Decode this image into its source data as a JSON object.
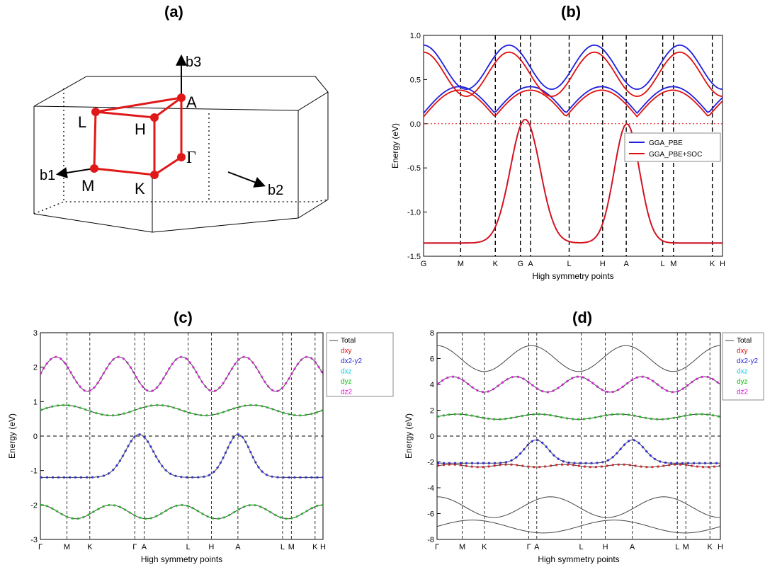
{
  "panel_labels": [
    "(a)",
    "(b)",
    "(c)",
    "(d)"
  ],
  "brillouin_zone": {
    "axes": [
      "b1",
      "b2",
      "b3"
    ],
    "points": [
      "A",
      "L",
      "H",
      "Γ",
      "M",
      "K"
    ]
  },
  "chart_data": [
    {
      "panel": "(b)",
      "type": "line",
      "xlabel": "High symmetry points",
      "ylabel": "Energy (eV)",
      "ylim": [
        -1.5,
        1.0
      ],
      "yticks": [
        1.0,
        0.5,
        0.0,
        -0.5,
        -1.0,
        -1.5
      ],
      "xticks": [
        "G",
        "M",
        "K",
        "G",
        "A",
        "L",
        "H",
        "A",
        "L",
        "M",
        "K",
        "H"
      ],
      "fermi_level": 0.0,
      "legend": "right",
      "series": [
        {
          "name": "GGA_PBE",
          "color": "#1f1fdd"
        },
        {
          "name": "GGA_PBE+SOC",
          "color": "#e01010"
        }
      ]
    },
    {
      "panel": "(c)",
      "type": "line",
      "xlabel": "High symmetry points",
      "ylabel": "Energy (eV)",
      "ylim": [
        -3,
        3
      ],
      "yticks": [
        3,
        2,
        1,
        0,
        -1,
        -2,
        -3
      ],
      "xticks": [
        "Γ",
        "M",
        "K",
        "Γ",
        "A",
        "L",
        "H",
        "A",
        "L",
        "M",
        "K",
        "H"
      ],
      "fermi_level": 0,
      "legend": "outside-right",
      "series": [
        {
          "name": "Total",
          "color": "#444444"
        },
        {
          "name": "dxy",
          "color": "#e01010"
        },
        {
          "name": "dx2-y2",
          "color": "#2020e0"
        },
        {
          "name": "dxz",
          "color": "#10d0e0"
        },
        {
          "name": "dyz",
          "color": "#10c010"
        },
        {
          "name": "dz2",
          "color": "#e010e0"
        }
      ]
    },
    {
      "panel": "(d)",
      "type": "line",
      "xlabel": "High symmetry points",
      "ylabel": "Energy (eV)",
      "ylim": [
        -8,
        8
      ],
      "yticks": [
        8,
        6,
        4,
        2,
        0,
        -2,
        -4,
        -6,
        -8
      ],
      "xticks": [
        "Γ",
        "M",
        "K",
        "Γ",
        "A",
        "L",
        "H",
        "A",
        "L",
        "M",
        "K",
        "H"
      ],
      "fermi_level": 0,
      "legend": "outside-right",
      "series": [
        {
          "name": "Total",
          "color": "#444444"
        },
        {
          "name": "dxy",
          "color": "#e01010"
        },
        {
          "name": "dx2-y2",
          "color": "#2020e0"
        },
        {
          "name": "dxz",
          "color": "#10d0e0"
        },
        {
          "name": "dyz",
          "color": "#10c010"
        },
        {
          "name": "dz2",
          "color": "#e010e0"
        }
      ]
    }
  ]
}
